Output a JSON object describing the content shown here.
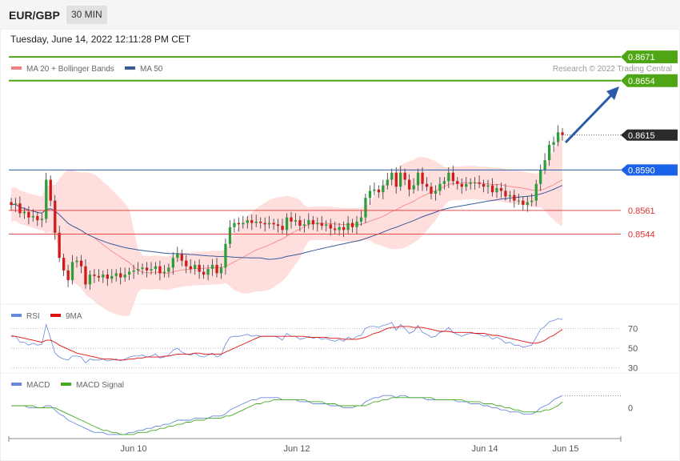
{
  "header": {
    "symbol": "EUR/GBP",
    "timeframe": "30 MIN"
  },
  "timestamp": "Tuesday, June 14, 2022 12:11:28 PM CET",
  "credit": "Research © 2022 Trading Central",
  "colors": {
    "up": "#2e9e3a",
    "down": "#d21a1a",
    "ma20": "#f08080",
    "ma50": "#3a5a9a",
    "band": "#ffd6d6",
    "target": "#4fa614",
    "pivot": "#1a62e8",
    "support": "#e03030",
    "rsi": "#6688dd",
    "rsi_ma": "#e01010",
    "macd": "#6688dd",
    "macd_signal": "#44aa22",
    "arrow": "#2a5ba8"
  },
  "chart_data": [
    {
      "type": "candlestick",
      "legend": [
        {
          "label": "MA 20 + Bollinger Bands",
          "color": "#f08080"
        },
        {
          "label": "MA 50",
          "color": "#3a5a9a"
        }
      ],
      "x_ticks": [
        "Jun 10",
        "Jun 12",
        "Jun 14",
        "Jun 15"
      ],
      "y_range": [
        0.8495,
        0.869
      ],
      "levels": [
        {
          "value": 0.8671,
          "label": "0.8671",
          "kind": "target"
        },
        {
          "value": 0.8654,
          "label": "0.8654",
          "kind": "target"
        },
        {
          "value": 0.8615,
          "label": "0.8615",
          "kind": "last"
        },
        {
          "value": 0.859,
          "label": "0.8590",
          "kind": "pivot"
        },
        {
          "value": 0.8561,
          "label": "0.8561",
          "kind": "support"
        },
        {
          "value": 0.8544,
          "label": "0.8544",
          "kind": "support"
        }
      ],
      "close": [
        0.8565,
        0.8566,
        0.8559,
        0.856,
        0.8556,
        0.8557,
        0.8554,
        0.8555,
        0.8583,
        0.8568,
        0.8545,
        0.8527,
        0.8518,
        0.8511,
        0.8524,
        0.8525,
        0.8521,
        0.8508,
        0.8515,
        0.8514,
        0.8513,
        0.8515,
        0.8512,
        0.8514,
        0.8516,
        0.8513,
        0.8515,
        0.8517,
        0.8518,
        0.8519,
        0.852,
        0.8518,
        0.8519,
        0.8521,
        0.8516,
        0.8517,
        0.852,
        0.8527,
        0.853,
        0.8525,
        0.8521,
        0.8519,
        0.8522,
        0.8517,
        0.8515,
        0.8519,
        0.8522,
        0.8516,
        0.852,
        0.8537,
        0.8549,
        0.8552,
        0.8551,
        0.8552,
        0.8554,
        0.8552,
        0.8553,
        0.8552,
        0.8551,
        0.8552,
        0.8551,
        0.855,
        0.8547,
        0.8556,
        0.8553,
        0.8554,
        0.855,
        0.8551,
        0.8554,
        0.8551,
        0.8552,
        0.855,
        0.8551,
        0.8548,
        0.8547,
        0.8549,
        0.8547,
        0.8552,
        0.8549,
        0.8553,
        0.8556,
        0.857,
        0.8575,
        0.8576,
        0.8574,
        0.8579,
        0.8583,
        0.8588,
        0.8578,
        0.8588,
        0.8583,
        0.8576,
        0.8579,
        0.8588,
        0.858,
        0.8578,
        0.8573,
        0.8575,
        0.858,
        0.8582,
        0.8588,
        0.8582,
        0.858,
        0.8578,
        0.858,
        0.8581,
        0.8581,
        0.858,
        0.8578,
        0.8579,
        0.8574,
        0.8577,
        0.8575,
        0.8571,
        0.8572,
        0.8568,
        0.8568,
        0.8565,
        0.8567,
        0.8568,
        0.858,
        0.859,
        0.8597,
        0.8608,
        0.861,
        0.8617,
        0.8615
      ]
    },
    {
      "type": "line",
      "legend": [
        {
          "label": "RSI",
          "color": "#6688dd"
        },
        {
          "label": "9MA",
          "color": "#e01010"
        }
      ],
      "y_ticks": [
        "70",
        "50",
        "30"
      ],
      "y_range": [
        20,
        80
      ],
      "series": [
        {
          "name": "RSI",
          "values": [
            63,
            62,
            56,
            56,
            53,
            55,
            53,
            54,
            74,
            60,
            45,
            41,
            39,
            38,
            42,
            42,
            41,
            35,
            39,
            38,
            38,
            39,
            37,
            38,
            39,
            37,
            39,
            41,
            42,
            42,
            43,
            41,
            42,
            44,
            40,
            41,
            43,
            48,
            50,
            46,
            44,
            43,
            45,
            42,
            41,
            43,
            45,
            41,
            43,
            54,
            61,
            62,
            62,
            63,
            64,
            62,
            63,
            62,
            62,
            62,
            62,
            61,
            58,
            65,
            62,
            62,
            59,
            60,
            62,
            60,
            61,
            59,
            60,
            58,
            57,
            59,
            57,
            61,
            59,
            62,
            63,
            70,
            72,
            72,
            71,
            73,
            74,
            76,
            68,
            74,
            70,
            65,
            67,
            73,
            66,
            64,
            61,
            62,
            66,
            67,
            71,
            66,
            64,
            62,
            64,
            65,
            65,
            64,
            62,
            63,
            59,
            61,
            59,
            55,
            56,
            53,
            53,
            51,
            52,
            53,
            61,
            69,
            72,
            77,
            78,
            80,
            79
          ]
        },
        {
          "name": "9MA",
          "values": [
            62,
            62,
            61,
            60,
            59,
            58,
            57,
            56,
            58,
            58,
            56,
            53,
            51,
            49,
            47,
            45,
            44,
            43,
            42,
            41,
            40,
            39,
            39,
            39,
            38,
            38,
            38,
            39,
            39,
            40,
            40,
            41,
            41,
            41,
            41,
            42,
            42,
            43,
            44,
            44,
            44,
            44,
            45,
            45,
            44,
            44,
            44,
            44,
            44,
            46,
            48,
            50,
            52,
            54,
            56,
            58,
            60,
            62,
            62,
            62,
            62,
            62,
            62,
            62,
            62,
            62,
            62,
            62,
            61,
            61,
            61,
            61,
            61,
            60,
            60,
            60,
            59,
            59,
            59,
            59,
            60,
            61,
            63,
            65,
            66,
            68,
            70,
            71,
            71,
            72,
            72,
            72,
            71,
            71,
            71,
            70,
            69,
            68,
            67,
            67,
            67,
            66,
            66,
            66,
            66,
            66,
            65,
            65,
            65,
            64,
            63,
            63,
            62,
            61,
            60,
            59,
            58,
            57,
            56,
            55,
            55,
            56,
            58,
            61,
            63,
            66,
            69
          ]
        }
      ]
    },
    {
      "type": "line",
      "legend": [
        {
          "label": "MACD",
          "color": "#6688dd"
        },
        {
          "label": "MACD Signal",
          "color": "#44aa22"
        }
      ],
      "y_ticks": [
        "0"
      ],
      "y_range": [
        -0.0015,
        0.001
      ],
      "series": [
        {
          "name": "MACD",
          "values": [
            0.0001,
            0.0001,
            0.0001,
            0.0001,
            0.0,
            0.0,
            0.0,
            0.0,
            0.0001,
            0.0001,
            -0.0001,
            -0.0003,
            -0.0004,
            -0.0006,
            -0.0007,
            -0.0008,
            -0.0009,
            -0.001,
            -0.0011,
            -0.0012,
            -0.0012,
            -0.0012,
            -0.0013,
            -0.0013,
            -0.0013,
            -0.0013,
            -0.0013,
            -0.0012,
            -0.0012,
            -0.0011,
            -0.0011,
            -0.001,
            -0.001,
            -0.0009,
            -0.0009,
            -0.0008,
            -0.0008,
            -0.0007,
            -0.0006,
            -0.0006,
            -0.0006,
            -0.0006,
            -0.0005,
            -0.0005,
            -0.0005,
            -0.0005,
            -0.0004,
            -0.0004,
            -0.0004,
            -0.0003,
            -0.0001,
            0.0,
            0.0001,
            0.0002,
            0.0003,
            0.0004,
            0.0004,
            0.0005,
            0.0005,
            0.0005,
            0.0005,
            0.0005,
            0.0004,
            0.0004,
            0.0004,
            0.0004,
            0.0003,
            0.0003,
            0.0003,
            0.0002,
            0.0002,
            0.0002,
            0.0002,
            0.0001,
            0.0001,
            0.0001,
            0.0,
            0.0,
            0.0,
            0.0001,
            0.0001,
            0.0003,
            0.0004,
            0.0005,
            0.0005,
            0.0006,
            0.0006,
            0.0006,
            0.0005,
            0.0006,
            0.0006,
            0.0005,
            0.0005,
            0.0005,
            0.0005,
            0.0004,
            0.0004,
            0.0004,
            0.0004,
            0.0004,
            0.0004,
            0.0004,
            0.0003,
            0.0003,
            0.0003,
            0.0002,
            0.0002,
            0.0002,
            0.0001,
            0.0001,
            0.0,
            0.0,
            -0.0001,
            -0.0001,
            -0.0002,
            -0.0002,
            -0.0002,
            -0.0003,
            -0.0003,
            -0.0003,
            -0.0002,
            0.0,
            0.0001,
            0.0002,
            0.0004,
            0.0005,
            0.0006
          ]
        },
        {
          "name": "MACD Signal",
          "values": [
            0.0001,
            0.0001,
            0.0001,
            0.0001,
            0.0001,
            0.0001,
            0.0,
            0.0,
            0.0,
            0.0,
            0.0,
            -0.0001,
            -0.0002,
            -0.0003,
            -0.0004,
            -0.0005,
            -0.0006,
            -0.0007,
            -0.0008,
            -0.0009,
            -0.001,
            -0.0011,
            -0.0011,
            -0.0012,
            -0.0012,
            -0.0013,
            -0.0013,
            -0.0013,
            -0.0013,
            -0.0012,
            -0.0012,
            -0.0012,
            -0.0011,
            -0.0011,
            -0.001,
            -0.001,
            -0.0009,
            -0.0009,
            -0.0008,
            -0.0008,
            -0.0007,
            -0.0007,
            -0.0006,
            -0.0006,
            -0.0006,
            -0.0005,
            -0.0005,
            -0.0005,
            -0.0005,
            -0.0004,
            -0.0004,
            -0.0003,
            -0.0002,
            -0.0001,
            0.0,
            0.0001,
            0.0002,
            0.0002,
            0.0003,
            0.0003,
            0.0004,
            0.0004,
            0.0004,
            0.0004,
            0.0004,
            0.0004,
            0.0004,
            0.0004,
            0.0003,
            0.0003,
            0.0003,
            0.0003,
            0.0002,
            0.0002,
            0.0002,
            0.0001,
            0.0001,
            0.0001,
            0.0001,
            0.0001,
            0.0001,
            0.0001,
            0.0002,
            0.0003,
            0.0003,
            0.0004,
            0.0004,
            0.0005,
            0.0005,
            0.0005,
            0.0005,
            0.0005,
            0.0005,
            0.0005,
            0.0005,
            0.0005,
            0.0005,
            0.0004,
            0.0004,
            0.0004,
            0.0004,
            0.0004,
            0.0004,
            0.0004,
            0.0003,
            0.0003,
            0.0003,
            0.0003,
            0.0002,
            0.0002,
            0.0002,
            0.0001,
            0.0001,
            0.0,
            0.0,
            -0.0001,
            -0.0001,
            -0.0002,
            -0.0002,
            -0.0002,
            -0.0002,
            -0.0002,
            -0.0001,
            -0.0001,
            0.0,
            0.0001,
            0.0003
          ]
        }
      ]
    }
  ]
}
